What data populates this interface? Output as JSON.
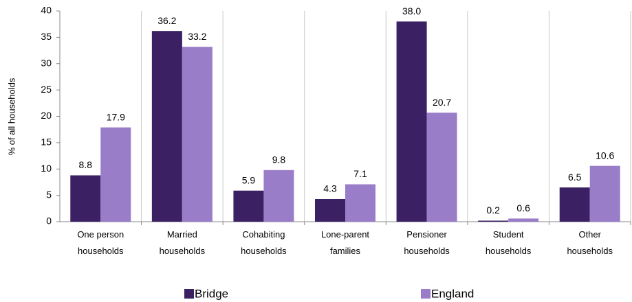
{
  "chart_data": {
    "type": "bar",
    "y_label": "% of all households",
    "categories": [
      [
        "One person",
        "households"
      ],
      [
        "Married",
        "households"
      ],
      [
        "Cohabiting",
        "households"
      ],
      [
        "Lone-parent",
        "families"
      ],
      [
        "Pensioner",
        "households"
      ],
      [
        "Student",
        "households"
      ],
      [
        "Other",
        "households"
      ]
    ],
    "series": [
      {
        "name": "Bridge",
        "color": "#3b2163",
        "values": [
          8.8,
          36.2,
          5.9,
          4.3,
          38.0,
          0.2,
          6.5
        ],
        "value_labels": [
          "8.8",
          "36.2",
          "5.9",
          "4.3",
          "38.0",
          "0.2",
          "6.5"
        ]
      },
      {
        "name": "England",
        "color": "#9a7dc9",
        "values": [
          17.9,
          33.2,
          9.8,
          7.1,
          20.7,
          0.6,
          10.6
        ],
        "value_labels": [
          "17.9",
          "33.2",
          "9.8",
          "7.1",
          "20.7",
          "0.6",
          "10.6"
        ]
      }
    ],
    "ylim": [
      0,
      40
    ],
    "yticks": [
      0,
      5,
      10,
      15,
      20,
      25,
      30,
      35,
      40
    ],
    "legend": "bottom"
  }
}
